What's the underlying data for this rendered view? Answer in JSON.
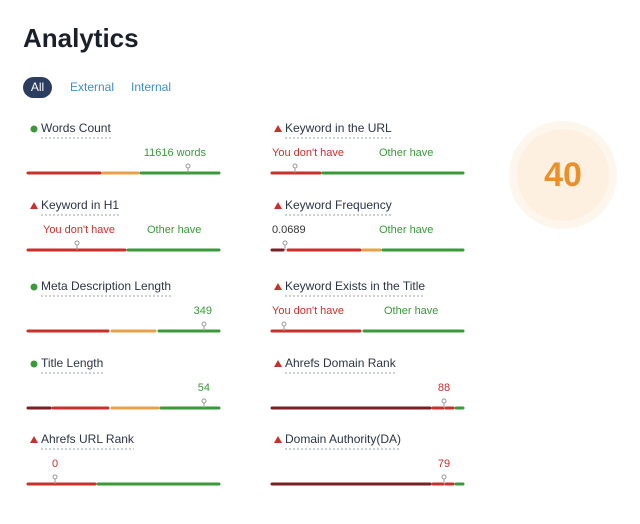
{
  "header": {
    "title": "Analytics"
  },
  "tabs": [
    "All",
    "External",
    "Internal"
  ],
  "score": 40,
  "metrics": [
    {
      "name": "Words Count",
      "value": "11616 words"
    },
    {
      "name": "Keyword in the URL",
      "left_label": "You don't have",
      "right_label": "Other have"
    },
    {
      "name": "Keyword in H1",
      "left_label": "You don't have",
      "right_label": "Other have"
    },
    {
      "name": "Keyword Frequency",
      "value": 0.0689,
      "right_label": "Other have"
    },
    {
      "name": "Meta Description Length",
      "value": 349
    },
    {
      "name": "Keyword Exists in the Title",
      "left_label": "You don't have",
      "right_label": "Other have"
    },
    {
      "name": "Title Length",
      "value": 54
    },
    {
      "name": "Ahrefs Domain Rank",
      "value": 88
    },
    {
      "name": "Ahrefs URL Rank",
      "value": 0
    },
    {
      "name": "Domain Authority(DA)",
      "value": 79
    }
  ]
}
